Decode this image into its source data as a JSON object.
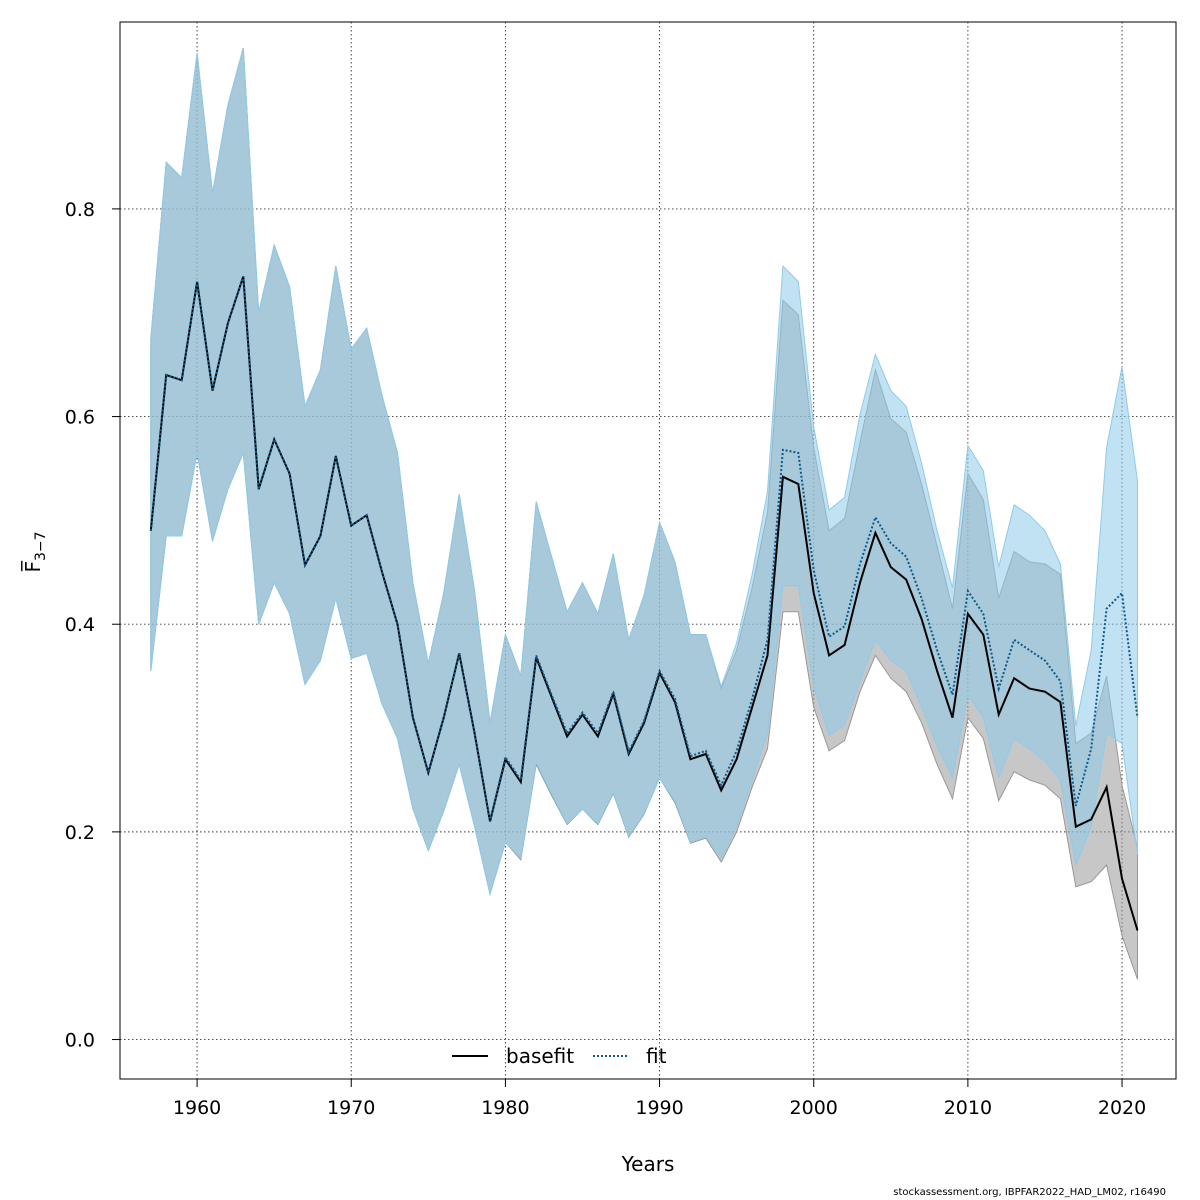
{
  "chart_data": {
    "type": "line",
    "xlabel": "Years",
    "ylabel": "F̅",
    "ylabel_sub": "3−7",
    "xlim": [
      1955,
      2023.5
    ],
    "ylim": [
      -0.038,
      0.98
    ],
    "x_ticks": [
      1960,
      1970,
      1980,
      1990,
      2000,
      2010,
      2020
    ],
    "y_ticks": [
      0.0,
      0.2,
      0.4,
      0.6,
      0.8
    ],
    "y_tick_labels": [
      "0.0",
      "0.2",
      "0.4",
      "0.6",
      "0.8"
    ],
    "grid": true,
    "legend_position": "bottom-center",
    "x": [
      1957,
      1958,
      1959,
      1960,
      1961,
      1962,
      1963,
      1964,
      1965,
      1966,
      1967,
      1968,
      1969,
      1970,
      1971,
      1972,
      1973,
      1974,
      1975,
      1976,
      1977,
      1978,
      1979,
      1980,
      1981,
      1982,
      1983,
      1984,
      1985,
      1986,
      1987,
      1988,
      1989,
      1990,
      1991,
      1992,
      1993,
      1994,
      1995,
      1996,
      1997,
      1998,
      1999,
      2000,
      2001,
      2002,
      2003,
      2004,
      2005,
      2006,
      2007,
      2008,
      2009,
      2010,
      2011,
      2012,
      2013,
      2014,
      2015,
      2016,
      2017,
      2018,
      2019,
      2020,
      2021
    ],
    "series": [
      {
        "name": "basefit",
        "color": "#000000",
        "band_color": "#999999",
        "line_style": "solid",
        "values": [
          0.49,
          0.64,
          0.635,
          0.73,
          0.625,
          0.69,
          0.735,
          0.53,
          0.578,
          0.545,
          0.457,
          0.485,
          0.562,
          0.495,
          0.505,
          0.45,
          0.4,
          0.31,
          0.257,
          0.31,
          0.372,
          0.295,
          0.21,
          0.27,
          0.248,
          0.368,
          0.33,
          0.292,
          0.313,
          0.292,
          0.333,
          0.275,
          0.305,
          0.353,
          0.325,
          0.27,
          0.275,
          0.24,
          0.27,
          0.32,
          0.37,
          0.542,
          0.535,
          0.43,
          0.37,
          0.38,
          0.44,
          0.488,
          0.455,
          0.443,
          0.405,
          0.355,
          0.31,
          0.41,
          0.39,
          0.313,
          0.348,
          0.338,
          0.335,
          0.325,
          0.205,
          0.212,
          0.243,
          0.155,
          0.105
        ],
        "lower": [
          0.355,
          0.485,
          0.485,
          0.565,
          0.48,
          0.53,
          0.565,
          0.4,
          0.44,
          0.41,
          0.342,
          0.365,
          0.425,
          0.367,
          0.372,
          0.323,
          0.29,
          0.222,
          0.182,
          0.22,
          0.265,
          0.205,
          0.14,
          0.19,
          0.173,
          0.265,
          0.235,
          0.207,
          0.222,
          0.207,
          0.237,
          0.195,
          0.217,
          0.252,
          0.228,
          0.189,
          0.194,
          0.171,
          0.2,
          0.243,
          0.28,
          0.412,
          0.412,
          0.32,
          0.278,
          0.288,
          0.335,
          0.37,
          0.348,
          0.335,
          0.305,
          0.265,
          0.232,
          0.31,
          0.29,
          0.23,
          0.258,
          0.25,
          0.245,
          0.232,
          0.147,
          0.152,
          0.168,
          0.1,
          0.058
        ],
        "upper": [
          0.675,
          0.845,
          0.83,
          0.95,
          0.815,
          0.9,
          0.955,
          0.7,
          0.765,
          0.725,
          0.61,
          0.645,
          0.745,
          0.665,
          0.685,
          0.62,
          0.565,
          0.44,
          0.362,
          0.43,
          0.525,
          0.432,
          0.305,
          0.39,
          0.35,
          0.518,
          0.465,
          0.412,
          0.44,
          0.41,
          0.468,
          0.385,
          0.428,
          0.498,
          0.46,
          0.39,
          0.39,
          0.338,
          0.375,
          0.435,
          0.508,
          0.712,
          0.698,
          0.57,
          0.49,
          0.502,
          0.575,
          0.645,
          0.598,
          0.585,
          0.535,
          0.475,
          0.415,
          0.545,
          0.52,
          0.425,
          0.47,
          0.46,
          0.458,
          0.448,
          0.285,
          0.295,
          0.35,
          0.245,
          0.185
        ]
      },
      {
        "name": "fit",
        "color": "#0b5a8a",
        "band_color": "#8ecbea",
        "line_style": "dotted",
        "values": [
          0.49,
          0.64,
          0.635,
          0.73,
          0.625,
          0.69,
          0.735,
          0.53,
          0.578,
          0.545,
          0.457,
          0.485,
          0.562,
          0.495,
          0.505,
          0.45,
          0.4,
          0.31,
          0.257,
          0.31,
          0.372,
          0.295,
          0.21,
          0.272,
          0.25,
          0.37,
          0.332,
          0.295,
          0.315,
          0.295,
          0.335,
          0.277,
          0.307,
          0.355,
          0.328,
          0.273,
          0.278,
          0.245,
          0.278,
          0.328,
          0.385,
          0.568,
          0.565,
          0.452,
          0.388,
          0.398,
          0.458,
          0.503,
          0.478,
          0.465,
          0.425,
          0.375,
          0.332,
          0.432,
          0.41,
          0.338,
          0.385,
          0.375,
          0.365,
          0.345,
          0.225,
          0.28,
          0.415,
          0.43,
          0.31
        ],
        "lower": [
          0.355,
          0.485,
          0.485,
          0.565,
          0.48,
          0.53,
          0.565,
          0.4,
          0.44,
          0.41,
          0.342,
          0.365,
          0.425,
          0.367,
          0.372,
          0.323,
          0.29,
          0.222,
          0.182,
          0.22,
          0.265,
          0.205,
          0.14,
          0.19,
          0.175,
          0.267,
          0.237,
          0.208,
          0.222,
          0.208,
          0.238,
          0.196,
          0.218,
          0.252,
          0.23,
          0.19,
          0.196,
          0.175,
          0.205,
          0.25,
          0.295,
          0.437,
          0.437,
          0.34,
          0.293,
          0.303,
          0.345,
          0.385,
          0.365,
          0.355,
          0.32,
          0.282,
          0.252,
          0.332,
          0.31,
          0.252,
          0.29,
          0.28,
          0.268,
          0.25,
          0.168,
          0.205,
          0.295,
          0.285,
          0.178
        ],
        "upper": [
          0.675,
          0.845,
          0.83,
          0.95,
          0.815,
          0.9,
          0.955,
          0.7,
          0.765,
          0.725,
          0.61,
          0.645,
          0.745,
          0.665,
          0.685,
          0.62,
          0.565,
          0.44,
          0.362,
          0.43,
          0.525,
          0.432,
          0.305,
          0.39,
          0.35,
          0.518,
          0.465,
          0.412,
          0.44,
          0.41,
          0.468,
          0.385,
          0.428,
          0.498,
          0.46,
          0.39,
          0.39,
          0.34,
          0.382,
          0.448,
          0.528,
          0.745,
          0.73,
          0.59,
          0.51,
          0.522,
          0.602,
          0.66,
          0.625,
          0.61,
          0.555,
          0.49,
          0.435,
          0.572,
          0.548,
          0.455,
          0.515,
          0.505,
          0.49,
          0.458,
          0.302,
          0.375,
          0.57,
          0.648,
          0.538
        ]
      }
    ]
  },
  "footer_text": "stockassessment.org, IBPFAR2022_HAD_LM02, r16490"
}
